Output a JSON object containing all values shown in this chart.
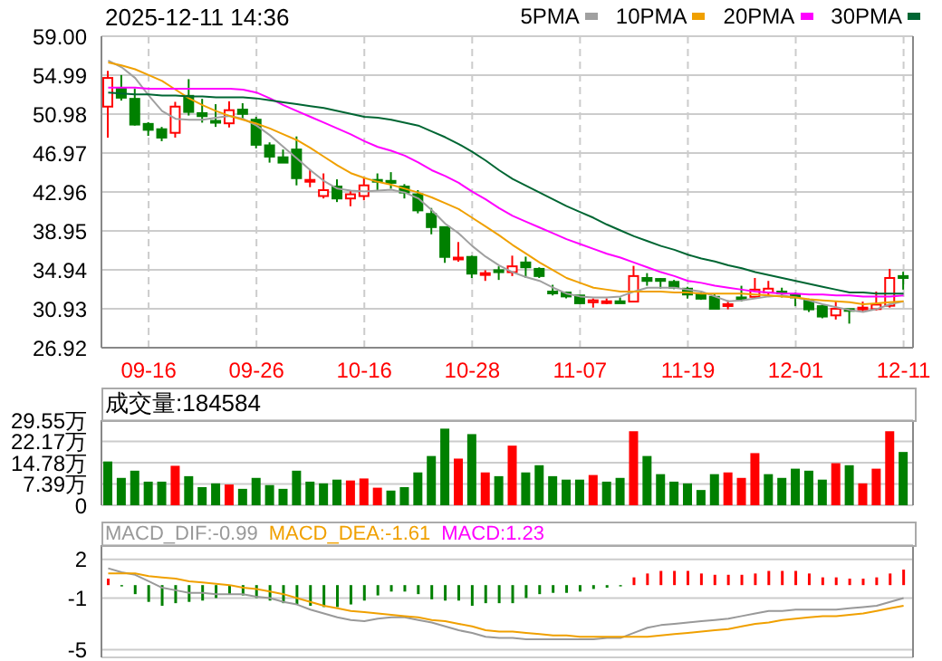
{
  "chart_data": [
    {
      "type": "candlestick",
      "title": "2025-12-11 14:36",
      "legend": "top right",
      "grid": true,
      "categories": [
        null,
        null,
        null,
        "09-16",
        null,
        null,
        null,
        null,
        null,
        null,
        null,
        "09-26",
        null,
        null,
        null,
        null,
        null,
        null,
        null,
        "10-16",
        null,
        null,
        null,
        null,
        null,
        null,
        null,
        "10-28",
        null,
        null,
        null,
        null,
        null,
        null,
        null,
        "11-07",
        null,
        null,
        null,
        null,
        null,
        null,
        null,
        "11-19",
        null,
        null,
        null,
        null,
        null,
        null,
        null,
        "12-01",
        null,
        null,
        null,
        null,
        null,
        null,
        null,
        "12-11"
      ],
      "ylim": [
        26.92,
        59.0
      ],
      "yticks": [
        {
          "value": 26.92,
          "label": "26.92"
        },
        {
          "value": 30.93,
          "label": "30.93"
        },
        {
          "value": 34.94,
          "label": "34.94"
        },
        {
          "value": 38.95,
          "label": "38.95"
        },
        {
          "value": 42.96,
          "label": "42.96"
        },
        {
          "value": 46.97,
          "label": "46.97"
        },
        {
          "value": 50.98,
          "label": "50.98"
        },
        {
          "value": 54.99,
          "label": "54.99"
        },
        {
          "value": 59.0,
          "label": "59.00"
        }
      ],
      "ohlc": [
        [
          51.75,
          55.44,
          48.56,
          54.7
        ],
        [
          53.6,
          55.0,
          52.37,
          52.67
        ],
        [
          52.55,
          53.6,
          49.8,
          49.9
        ],
        [
          49.97,
          50.15,
          48.74,
          49.36
        ],
        [
          49.42,
          49.66,
          48.19,
          48.56
        ],
        [
          49.05,
          52.24,
          48.56,
          51.75
        ],
        [
          52.86,
          54.58,
          50.83,
          51.2
        ],
        [
          51.08,
          52.55,
          50.1,
          50.77
        ],
        [
          50.28,
          52.0,
          49.66,
          50.16
        ],
        [
          50.03,
          52.3,
          49.6,
          51.38
        ],
        [
          51.44,
          52.1,
          50.4,
          51.0
        ],
        [
          50.4,
          50.7,
          47.45,
          47.82
        ],
        [
          47.76,
          48.07,
          45.98,
          46.6
        ],
        [
          46.53,
          47.33,
          45.98,
          45.98
        ],
        [
          47.33,
          48.68,
          43.64,
          44.38
        ],
        [
          44.1,
          45.3,
          43.45,
          44.2
        ],
        [
          42.54,
          44.87,
          42.29,
          43.15
        ],
        [
          43.52,
          44.26,
          41.92,
          42.29
        ],
        [
          42.29,
          43.15,
          41.49,
          42.72
        ],
        [
          42.54,
          44.44,
          42.1,
          43.64
        ],
        [
          44.2,
          44.87,
          43.15,
          44.14
        ],
        [
          44.1,
          45.0,
          43.3,
          43.9
        ],
        [
          43.52,
          43.77,
          42.29,
          42.9
        ],
        [
          42.72,
          43.15,
          40.76,
          41.06
        ],
        [
          40.7,
          41.31,
          38.6,
          39.34
        ],
        [
          39.34,
          39.34,
          35.66,
          36.27
        ],
        [
          36.1,
          37.8,
          35.78,
          36.2
        ],
        [
          36.27,
          36.4,
          34.1,
          34.55
        ],
        [
          34.43,
          34.9,
          33.8,
          34.6
        ],
        [
          34.9,
          35.3,
          33.9,
          34.7
        ],
        [
          34.7,
          36.4,
          34.3,
          35.3
        ],
        [
          35.7,
          36.3,
          34.1,
          35.2
        ],
        [
          35.04,
          35.2,
          34.1,
          34.3
        ],
        [
          32.7,
          33.4,
          32.3,
          32.6
        ],
        [
          32.6,
          32.7,
          32.0,
          32.2
        ],
        [
          32.3,
          32.3,
          31.4,
          31.5
        ],
        [
          31.6,
          32.0,
          31.05,
          31.8
        ],
        [
          31.6,
          32.0,
          31.4,
          31.7
        ],
        [
          31.7,
          32.1,
          31.5,
          31.5
        ],
        [
          31.67,
          35.35,
          31.67,
          34.3
        ],
        [
          34.1,
          34.6,
          33.3,
          33.8
        ],
        [
          34.0,
          34.1,
          33.0,
          33.8
        ],
        [
          33.7,
          33.9,
          32.95,
          33.1
        ],
        [
          33.0,
          33.2,
          31.97,
          32.4
        ],
        [
          32.4,
          32.6,
          31.85,
          31.97
        ],
        [
          32.16,
          32.46,
          30.93,
          30.93
        ],
        [
          31.3,
          31.8,
          30.87,
          31.4
        ],
        [
          32.1,
          33.3,
          31.67,
          31.97
        ],
        [
          32.16,
          34.1,
          31.97,
          32.9
        ],
        [
          32.6,
          33.8,
          32.3,
          33.0
        ],
        [
          32.7,
          33.1,
          32.1,
          32.6
        ],
        [
          32.4,
          32.6,
          31.2,
          32.1
        ],
        [
          31.8,
          31.97,
          30.6,
          30.87
        ],
        [
          31.2,
          31.36,
          29.95,
          30.13
        ],
        [
          30.25,
          31.67,
          29.82,
          30.93
        ],
        [
          30.9,
          30.93,
          29.4,
          30.75
        ],
        [
          31.0,
          31.67,
          30.6,
          31.05
        ],
        [
          30.9,
          32.7,
          30.75,
          31.36
        ],
        [
          31.24,
          35.04,
          31.05,
          34.1
        ],
        [
          34.3,
          34.74,
          32.9,
          34.1
        ]
      ],
      "colors": [
        "#ff0000",
        "#008000",
        "#008000",
        "#008000",
        "#008000",
        "#ff0000",
        "#008000",
        "#008000",
        "#008000",
        "#ff0000",
        "#008000",
        "#008000",
        "#008000",
        "#008000",
        "#008000",
        "#ff0000",
        "#ff0000",
        "#008000",
        "#ff0000",
        "#ff0000",
        "#008000",
        "#008000",
        "#008000",
        "#008000",
        "#008000",
        "#008000",
        "#ff0000",
        "#008000",
        "#ff0000",
        "#008000",
        "#ff0000",
        "#008000",
        "#008000",
        "#008000",
        "#008000",
        "#008000",
        "#ff0000",
        "#ff0000",
        "#008000",
        "#ff0000",
        "#008000",
        "#008000",
        "#008000",
        "#008000",
        "#008000",
        "#008000",
        "#ff0000",
        "#008000",
        "#ff0000",
        "#ff0000",
        "#008000",
        "#008000",
        "#008000",
        "#008000",
        "#ff0000",
        "#008000",
        "#ff0000",
        "#ff0000",
        "#ff0000",
        "#008000"
      ],
      "series": [
        {
          "name": "5PMA",
          "type": "line",
          "color": "#a0a0a0",
          "values": [
            56.5,
            55.8,
            54.7,
            52.9,
            51.3,
            50.5,
            50.4,
            50.4,
            50.6,
            50.8,
            50.5,
            49.8,
            48.8,
            47.6,
            46.4,
            45.2,
            44.1,
            43.3,
            43.1,
            43.0,
            43.1,
            43.2,
            42.9,
            42.3,
            41.1,
            39.7,
            38.7,
            37.4,
            36.3,
            35.4,
            34.7,
            34.2,
            33.8,
            33.1,
            32.5,
            32.2,
            32.1,
            32.1,
            32.2,
            32.7,
            33.1,
            33.1,
            33.1,
            32.9,
            32.7,
            32.2,
            31.7,
            31.8,
            32.0,
            32.2,
            32.3,
            32.1,
            31.8,
            31.4,
            31.1,
            30.8,
            30.6,
            30.9,
            31.4,
            31.7
          ]
        },
        {
          "name": "10PMA",
          "type": "line",
          "color": "#f0a000",
          "values": [
            56.3,
            56.0,
            55.6,
            55.0,
            54.4,
            53.5,
            52.6,
            51.9,
            51.3,
            50.8,
            50.4,
            50.0,
            49.5,
            48.9,
            48.3,
            47.5,
            46.6,
            45.7,
            44.9,
            44.4,
            44.0,
            43.7,
            43.3,
            42.9,
            42.4,
            41.8,
            41.2,
            40.3,
            39.4,
            38.5,
            37.5,
            36.6,
            35.7,
            34.9,
            34.1,
            33.6,
            33.1,
            32.9,
            32.7,
            32.7,
            32.7,
            32.7,
            32.6,
            32.6,
            32.5,
            32.5,
            32.5,
            32.5,
            32.4,
            32.3,
            32.2,
            32.1,
            31.9,
            31.8,
            31.7,
            31.6,
            31.4,
            31.5,
            31.6,
            31.7
          ]
        },
        {
          "name": "20PMA",
          "type": "line",
          "color": "#ff00ff",
          "values": [
            53.7,
            53.7,
            53.7,
            53.6,
            53.6,
            53.6,
            53.6,
            53.6,
            53.6,
            53.6,
            53.5,
            53.2,
            52.6,
            51.9,
            51.3,
            50.7,
            50.1,
            49.5,
            48.9,
            48.2,
            47.6,
            47.2,
            46.7,
            46.0,
            45.2,
            44.6,
            43.9,
            43.0,
            42.2,
            41.3,
            40.5,
            39.9,
            39.3,
            38.7,
            38.1,
            37.6,
            37.1,
            36.6,
            36.2,
            35.7,
            35.2,
            34.7,
            34.3,
            33.8,
            33.6,
            33.3,
            33.1,
            32.9,
            32.7,
            32.6,
            32.5,
            32.5,
            32.4,
            32.4,
            32.3,
            32.3,
            32.2,
            32.2,
            32.2,
            32.3
          ]
        },
        {
          "name": "30PMA",
          "type": "line",
          "color": "#006633",
          "values": [
            53.2,
            53.1,
            53.0,
            53.0,
            52.9,
            52.9,
            52.8,
            52.8,
            52.7,
            52.7,
            52.7,
            52.6,
            52.4,
            52.2,
            52.0,
            51.8,
            51.6,
            51.3,
            51.0,
            50.7,
            50.6,
            50.4,
            50.1,
            49.8,
            49.2,
            48.6,
            47.9,
            47.1,
            46.2,
            45.2,
            44.3,
            43.6,
            42.9,
            42.2,
            41.5,
            40.9,
            40.3,
            39.6,
            39.0,
            38.4,
            37.9,
            37.4,
            37.0,
            36.5,
            36.1,
            35.8,
            35.4,
            35.1,
            34.7,
            34.4,
            34.1,
            33.8,
            33.5,
            33.2,
            32.9,
            32.6,
            32.6,
            32.5,
            32.5,
            32.5
          ]
        }
      ]
    },
    {
      "type": "bar",
      "tick_labels": "y",
      "grid": true,
      "annotations": [
        "成交量:184584"
      ],
      "categories": [
        null,
        null,
        null,
        null,
        null,
        null,
        null,
        null,
        null,
        null,
        null,
        null,
        null,
        null,
        null,
        null,
        null,
        null,
        null,
        null,
        null,
        null,
        null,
        null,
        null,
        null,
        null,
        null,
        null,
        null,
        null,
        null,
        null,
        null,
        null,
        null,
        null,
        null,
        null,
        null,
        null,
        null,
        null,
        null,
        null,
        null,
        null,
        null,
        null,
        null,
        null,
        null,
        null,
        null,
        null,
        null,
        null,
        null,
        null,
        null
      ],
      "ylim": [
        0,
        29.55
      ],
      "yticks": [
        0,
        {
          "value": 7.39,
          "label": "7.39万"
        },
        {
          "value": 14.78,
          "label": "14.78万"
        },
        {
          "value": 22.17,
          "label": "22.17万"
        },
        {
          "value": 29.55,
          "label": "29.55万"
        }
      ],
      "values": [
        15.2,
        9.5,
        12.0,
        8.2,
        8.2,
        13.7,
        10.1,
        6.3,
        7.6,
        7.2,
        5.7,
        9.5,
        7.0,
        5.7,
        12.0,
        8.2,
        7.6,
        8.9,
        8.6,
        9.3,
        6.1,
        5.1,
        6.3,
        11.4,
        17.1,
        26.6,
        16.2,
        24.7,
        11.4,
        10.1,
        20.7,
        11.4,
        13.9,
        10.1,
        8.9,
        8.9,
        10.5,
        8.2,
        9.5,
        25.7,
        17.1,
        10.8,
        8.2,
        7.6,
        5.3,
        10.8,
        11.4,
        9.5,
        18.1,
        10.8,
        9.5,
        12.7,
        12.0,
        8.9,
        14.6,
        13.9,
        7.6,
        12.7,
        25.7,
        18.5
      ],
      "colors": [
        "#008000",
        "#008000",
        "#008000",
        "#008000",
        "#008000",
        "#ff0000",
        "#008000",
        "#008000",
        "#008000",
        "#ff0000",
        "#008000",
        "#008000",
        "#008000",
        "#008000",
        "#008000",
        "#008000",
        "#008000",
        "#008000",
        "#ff0000",
        "#ff0000",
        "#ff0000",
        "#008000",
        "#008000",
        "#008000",
        "#008000",
        "#008000",
        "#ff0000",
        "#008000",
        "#ff0000",
        "#008000",
        "#ff0000",
        "#008000",
        "#008000",
        "#008000",
        "#008000",
        "#008000",
        "#ff0000",
        "#008000",
        "#008000",
        "#ff0000",
        "#008000",
        "#008000",
        "#008000",
        "#008000",
        "#008000",
        "#008000",
        "#ff0000",
        "#ff0000",
        "#ff0000",
        "#008000",
        "#008000",
        "#008000",
        "#008000",
        "#008000",
        "#ff0000",
        "#008000",
        "#ff0000",
        "#ff0000",
        "#ff0000",
        "#008000"
      ]
    },
    {
      "type": "bar",
      "tick_labels": "y",
      "grid": true,
      "legend": "top left",
      "annotations": [
        "MACD:1.23"
      ],
      "categories": [
        null,
        null,
        null,
        null,
        null,
        null,
        null,
        null,
        null,
        null,
        null,
        null,
        null,
        null,
        null,
        null,
        null,
        null,
        null,
        null,
        null,
        null,
        null,
        null,
        null,
        null,
        null,
        null,
        null,
        null,
        null,
        null,
        null,
        null,
        null,
        null,
        null,
        null,
        null,
        null,
        null,
        null,
        null,
        null,
        null,
        null,
        null,
        null,
        null,
        null,
        null,
        null,
        null,
        null,
        null,
        null,
        null,
        null,
        null,
        null
      ],
      "ylim": [
        -5.6,
        3.1
      ],
      "yticks": [
        -5,
        -1,
        2
      ],
      "series": [
        {
          "type": "bar",
          "values": [
            0.5,
            -0.1,
            -0.7,
            -1.3,
            -1.6,
            -1.4,
            -1.3,
            -1.2,
            -1.0,
            -0.7,
            -0.8,
            -1.0,
            -1.2,
            -1.4,
            -1.5,
            -1.6,
            -1.7,
            -1.7,
            -1.5,
            -1.2,
            -0.8,
            -0.5,
            -0.5,
            -0.7,
            -1.1,
            -1.2,
            -1.2,
            -1.6,
            -1.4,
            -1.4,
            -1.4,
            -1.0,
            -0.7,
            -0.6,
            -0.6,
            -0.5,
            -0.3,
            -0.2,
            -0.1,
            0.6,
            0.9,
            1.1,
            1.1,
            1.1,
            0.9,
            0.8,
            0.8,
            0.8,
            0.9,
            1.1,
            1.1,
            1.1,
            0.9,
            0.6,
            0.6,
            0.5,
            0.5,
            0.6,
            0.9,
            1.2
          ],
          "colors": [
            "#ff0000",
            "#008000",
            "#008000",
            "#008000",
            "#008000",
            "#008000",
            "#008000",
            "#008000",
            "#008000",
            "#008000",
            "#008000",
            "#008000",
            "#008000",
            "#008000",
            "#008000",
            "#008000",
            "#008000",
            "#008000",
            "#008000",
            "#008000",
            "#008000",
            "#008000",
            "#008000",
            "#008000",
            "#008000",
            "#008000",
            "#008000",
            "#008000",
            "#008000",
            "#008000",
            "#008000",
            "#008000",
            "#008000",
            "#008000",
            "#008000",
            "#008000",
            "#008000",
            "#008000",
            "#008000",
            "#ff0000",
            "#ff0000",
            "#ff0000",
            "#ff0000",
            "#ff0000",
            "#ff0000",
            "#ff0000",
            "#ff0000",
            "#ff0000",
            "#ff0000",
            "#ff0000",
            "#ff0000",
            "#ff0000",
            "#ff0000",
            "#ff0000",
            "#ff0000",
            "#ff0000",
            "#ff0000",
            "#ff0000",
            "#ff0000",
            "#ff0000"
          ]
        },
        {
          "name": "MACD_DIF:-0.99",
          "type": "line",
          "color": "#999999",
          "values": [
            1.3,
            1.0,
            0.8,
            0.3,
            -0.2,
            -0.4,
            -0.6,
            -0.6,
            -0.7,
            -0.7,
            -0.7,
            -0.9,
            -1.0,
            -1.3,
            -1.5,
            -1.9,
            -2.2,
            -2.5,
            -2.7,
            -2.8,
            -2.6,
            -2.5,
            -2.5,
            -2.7,
            -2.9,
            -3.2,
            -3.5,
            -3.7,
            -4.0,
            -4.1,
            -4.1,
            -4.2,
            -4.2,
            -4.2,
            -4.2,
            -4.2,
            -4.2,
            -4.1,
            -4.1,
            -3.7,
            -3.3,
            -3.1,
            -3.0,
            -2.9,
            -2.8,
            -2.7,
            -2.6,
            -2.4,
            -2.2,
            -2.0,
            -2.0,
            -1.9,
            -1.9,
            -1.9,
            -1.9,
            -1.8,
            -1.7,
            -1.6,
            -1.3,
            -1.0
          ]
        },
        {
          "name": "MACD_DEA:-1.61",
          "type": "line",
          "color": "#f0a000",
          "values": [
            0.9,
            0.9,
            0.9,
            0.7,
            0.6,
            0.5,
            0.3,
            0.2,
            0.1,
            0.0,
            -0.2,
            -0.3,
            -0.5,
            -0.7,
            -1.0,
            -1.3,
            -1.6,
            -1.8,
            -2.0,
            -2.1,
            -2.2,
            -2.3,
            -2.4,
            -2.5,
            -2.7,
            -2.8,
            -3.0,
            -3.2,
            -3.5,
            -3.6,
            -3.6,
            -3.7,
            -3.8,
            -3.9,
            -3.9,
            -4.0,
            -4.0,
            -4.0,
            -4.0,
            -4.0,
            -4.0,
            -3.9,
            -3.8,
            -3.7,
            -3.6,
            -3.5,
            -3.4,
            -3.2,
            -3.0,
            -2.9,
            -2.7,
            -2.6,
            -2.5,
            -2.4,
            -2.4,
            -2.3,
            -2.2,
            -2.0,
            -1.8,
            -1.6
          ]
        }
      ]
    }
  ]
}
